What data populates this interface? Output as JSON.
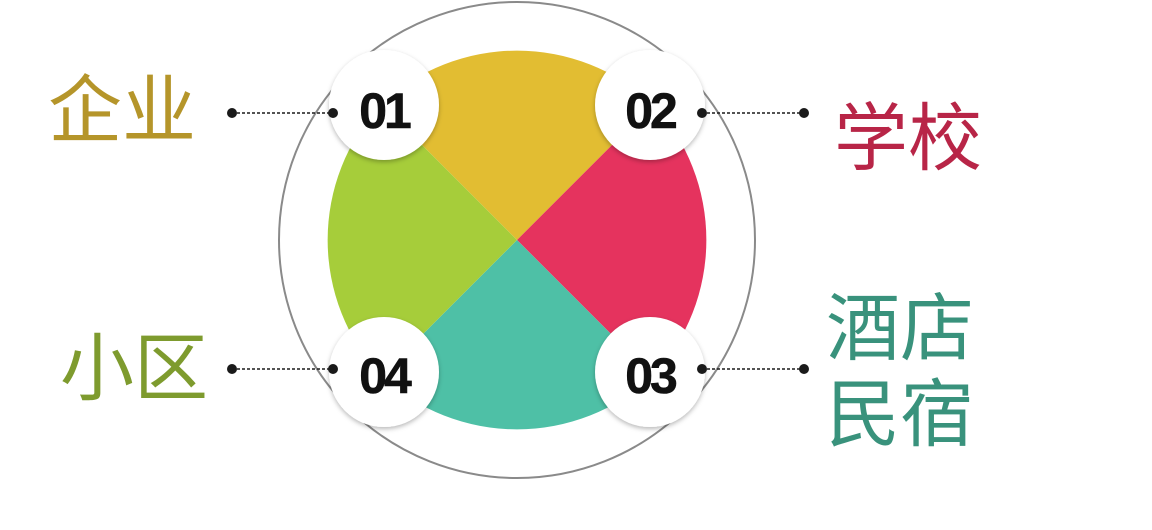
{
  "items": [
    {
      "number": "01",
      "label": "企业",
      "color": "#b5952a",
      "segment_color": "#e2bd32"
    },
    {
      "number": "02",
      "label": "学校",
      "color": "#b82547",
      "segment_color": "#e5335e"
    },
    {
      "number": "03",
      "label_lines": [
        "酒店",
        "民宿"
      ],
      "color": "#39927c",
      "segment_color": "#4ec0a6"
    },
    {
      "number": "04",
      "label": "小区",
      "color": "#7e9b2e",
      "segment_color": "#a6cd3a"
    }
  ],
  "colors": {
    "ring": "#8a8a8a",
    "connector": "#1a1a1a",
    "badge": "#ffffff"
  }
}
